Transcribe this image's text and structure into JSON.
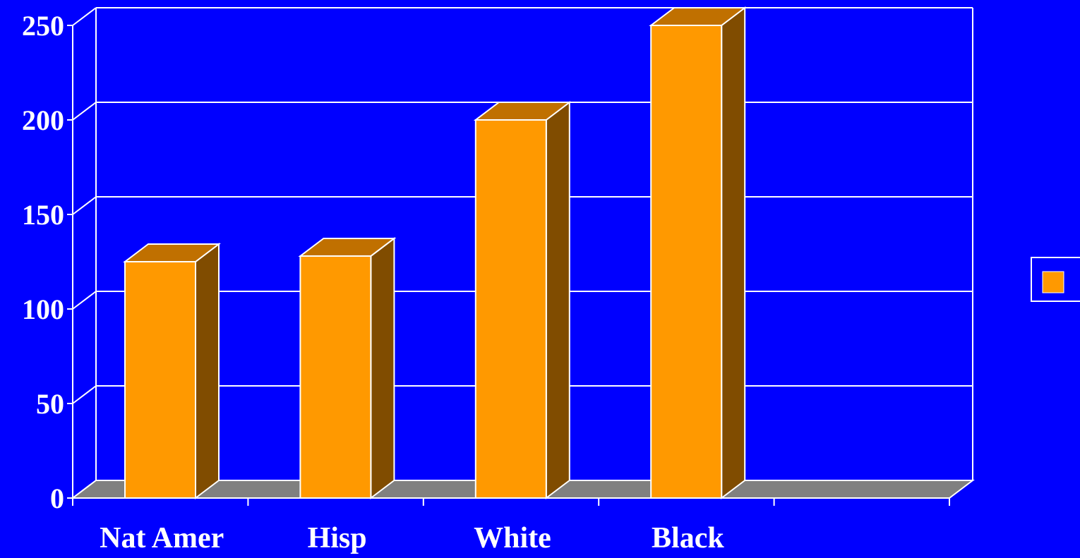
{
  "colors": {
    "background": "#0000FF",
    "bar_front": "#FF9900",
    "bar_top": "#C07000",
    "bar_side": "#804C00",
    "floor": "#808080",
    "lines": "#FFFFFF"
  },
  "chart_data": {
    "type": "bar",
    "style": "3d",
    "categories": [
      "Nat Amer",
      "Hisp",
      "White",
      "Black"
    ],
    "series": [
      {
        "values": [
          125,
          128,
          200,
          250
        ]
      }
    ],
    "xlabel": "",
    "ylabel": "",
    "ylim": [
      0,
      250
    ],
    "yticks": [
      "0",
      "50",
      "100",
      "150",
      "200",
      "250"
    ],
    "grid": true,
    "legend": {
      "placement": "right",
      "entries": [
        ""
      ]
    }
  }
}
